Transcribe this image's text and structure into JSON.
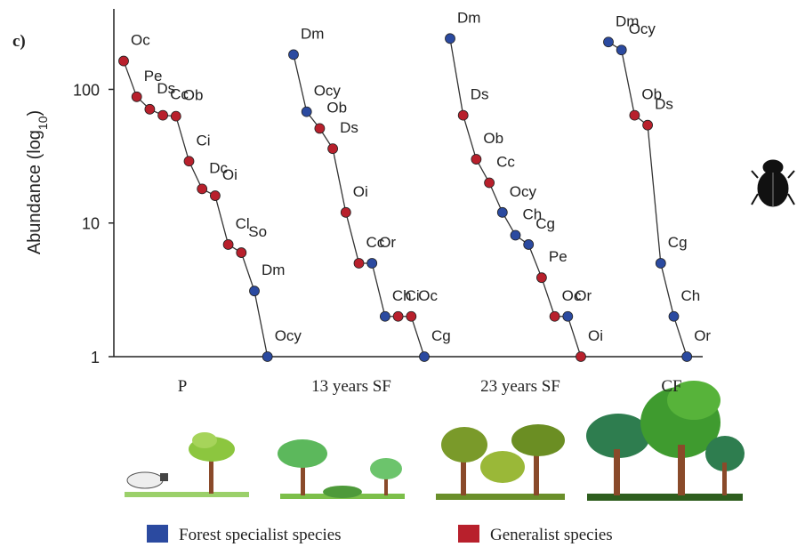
{
  "chart_data": {
    "type": "rank-abundance",
    "panel_label": "c)",
    "ylabel": {
      "text": "Abundance (log",
      "subscript": "10",
      "end": ")"
    },
    "log_scale": true,
    "ylim": [
      1,
      400
    ],
    "yticks": [
      1,
      10,
      100
    ],
    "legend": [
      {
        "name": "Forest specialist species",
        "color": "#2b4aa0"
      },
      {
        "name": "Generalist species",
        "color": "#b8202c"
      }
    ],
    "panels": [
      {
        "name": "P",
        "species": [
          "Oc",
          "Pe",
          "Ds",
          "Cc",
          "Ob",
          "Ci",
          "Dc",
          "Oi",
          "Cl",
          "So",
          "Dm",
          "Ocy"
        ],
        "values": [
          163,
          88,
          71,
          64,
          63,
          29,
          18,
          16,
          6.9,
          6.0,
          3.1,
          1
        ],
        "colors": [
          "#b8202c",
          "#b8202c",
          "#b8202c",
          "#b8202c",
          "#b8202c",
          "#b8202c",
          "#b8202c",
          "#b8202c",
          "#b8202c",
          "#b8202c",
          "#2b4aa0",
          "#2b4aa0"
        ]
      },
      {
        "name": "13 years SF",
        "species": [
          "Dm",
          "Ocy",
          "Ob",
          "Ds",
          "Oi",
          "Cc",
          "Or",
          "Ch",
          "Ci",
          "Oc",
          "Cg"
        ],
        "values": [
          182,
          68,
          51,
          36,
          12,
          5,
          5,
          2,
          2,
          2,
          1
        ],
        "colors": [
          "#2b4aa0",
          "#2b4aa0",
          "#b8202c",
          "#b8202c",
          "#b8202c",
          "#b8202c",
          "#2b4aa0",
          "#2b4aa0",
          "#b8202c",
          "#b8202c",
          "#2b4aa0"
        ]
      },
      {
        "name": "23 years SF",
        "species": [
          "Dm",
          "Ds",
          "Ob",
          "Cc",
          "Ocy",
          "Ch",
          "Cg",
          "Pe",
          "Oc",
          "Or",
          "Oi"
        ],
        "values": [
          240,
          64,
          30,
          20,
          12,
          8.1,
          6.9,
          3.9,
          2,
          2,
          1
        ],
        "colors": [
          "#2b4aa0",
          "#b8202c",
          "#b8202c",
          "#b8202c",
          "#2b4aa0",
          "#2b4aa0",
          "#2b4aa0",
          "#b8202c",
          "#b8202c",
          "#2b4aa0",
          "#b8202c"
        ]
      },
      {
        "name": "CF",
        "species": [
          "Dm",
          "Ocy",
          "Ob",
          "Ds",
          "Cg",
          "Ch",
          "Or"
        ],
        "values": [
          226,
          197,
          64,
          54,
          5,
          2,
          1
        ],
        "colors": [
          "#2b4aa0",
          "#2b4aa0",
          "#b8202c",
          "#b8202c",
          "#2b4aa0",
          "#2b4aa0",
          "#2b4aa0"
        ]
      }
    ]
  }
}
